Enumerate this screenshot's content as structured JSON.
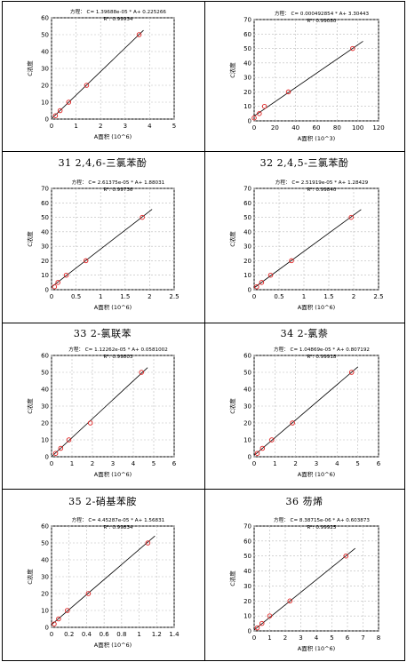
{
  "captions": [
    "",
    "",
    "31 2,4,6-三氯苯酚",
    "32 2,4,5-三氯苯酚",
    "33 2-氯联苯",
    "34 2-氯萘",
    "35 2-硝基苯胺",
    "36 芴烯"
  ],
  "chart_data": [
    {
      "type": "scatter",
      "title": "方程： C= 1.39688e-05 * A+ 0.225266",
      "subtitle": "R²: 0.99934",
      "xlabel": "A面积 (10^6)",
      "ylabel": "C浓度",
      "xlim": [
        0,
        5
      ],
      "ylim": [
        0,
        60
      ],
      "xticks": [
        0,
        1,
        2,
        3,
        4,
        5
      ],
      "yticks": [
        0,
        10,
        20,
        30,
        40,
        50,
        60
      ],
      "x": [
        0.16,
        0.35,
        0.7,
        1.43,
        3.57
      ],
      "y": [
        2,
        5,
        10,
        20,
        50
      ],
      "fit": {
        "x": [
          0,
          3.75
        ],
        "y": [
          0.2,
          52.6
        ]
      }
    },
    {
      "type": "scatter",
      "title": "方程： C= 0.000492854 * A+ 3.30443",
      "subtitle": "R²: 0.99080",
      "xlabel": "A面积 (10^3)",
      "ylabel": "C浓度",
      "xlim": [
        0,
        120
      ],
      "ylim": [
        0,
        70
      ],
      "xticks": [
        0,
        20,
        40,
        60,
        80,
        100,
        120
      ],
      "yticks": [
        0,
        10,
        20,
        30,
        40,
        50,
        60,
        70
      ],
      "x": [
        0,
        5,
        10,
        33,
        95
      ],
      "y": [
        2,
        5,
        10,
        20,
        50
      ],
      "fit": {
        "x": [
          0,
          105
        ],
        "y": [
          3.3,
          55.0
        ]
      }
    },
    {
      "type": "scatter",
      "title": "方程： C= 2.61375e-05 * A+ 1.88031",
      "subtitle": "R²: 0.99736",
      "xlabel": "A面积 (10^6)",
      "ylabel": "C浓度",
      "xlim": [
        0,
        2.5
      ],
      "ylim": [
        0,
        70
      ],
      "xticks": [
        0,
        0.5,
        1,
        1.5,
        2,
        2.5
      ],
      "yticks": [
        0,
        10,
        20,
        30,
        40,
        50,
        60,
        70
      ],
      "x": [
        0.06,
        0.13,
        0.3,
        0.7,
        1.85
      ],
      "y": [
        2,
        5,
        10,
        20,
        50
      ],
      "fit": {
        "x": [
          0,
          2.05
        ],
        "y": [
          1.9,
          55.5
        ]
      }
    },
    {
      "type": "scatter",
      "title": "方程： C= 2.51919e-05 * A+ 1.28429",
      "subtitle": "R²: 0.99840",
      "xlabel": "A面积 (10^6)",
      "ylabel": "C浓度",
      "xlim": [
        0,
        2.5
      ],
      "ylim": [
        0,
        70
      ],
      "xticks": [
        0,
        0.5,
        1,
        1.5,
        2,
        2.5
      ],
      "yticks": [
        0,
        10,
        20,
        30,
        40,
        50,
        60,
        70
      ],
      "x": [
        0.05,
        0.15,
        0.33,
        0.75,
        1.95
      ],
      "y": [
        2,
        5,
        10,
        20,
        50
      ],
      "fit": {
        "x": [
          0,
          2.15
        ],
        "y": [
          1.3,
          55.4
        ]
      }
    },
    {
      "type": "scatter",
      "title": "方程： C= 1.12262e-05 * A+ 0.0581002",
      "subtitle": "R²: 0.99803",
      "xlabel": "A面积 (10^6)",
      "ylabel": "C浓度",
      "xlim": [
        0,
        6
      ],
      "ylim": [
        0,
        60
      ],
      "xticks": [
        0,
        1,
        2,
        3,
        4,
        5,
        6
      ],
      "yticks": [
        0,
        10,
        20,
        30,
        40,
        50,
        60
      ],
      "x": [
        0.2,
        0.45,
        0.85,
        1.9,
        4.4
      ],
      "y": [
        2,
        5,
        10,
        20,
        50
      ],
      "fit": {
        "x": [
          0,
          4.7
        ],
        "y": [
          0.06,
          52.8
        ]
      }
    },
    {
      "type": "scatter",
      "title": "方程： C= 1.04869e-05 * A+ 0.807192",
      "subtitle": "R²: 0.99918",
      "xlabel": "A面积 (10^6)",
      "ylabel": "C浓度",
      "xlim": [
        0,
        6
      ],
      "ylim": [
        0,
        60
      ],
      "xticks": [
        0,
        1,
        2,
        3,
        4,
        5,
        6
      ],
      "yticks": [
        0,
        10,
        20,
        30,
        40,
        50,
        60
      ],
      "x": [
        0.15,
        0.4,
        0.85,
        1.85,
        4.7
      ],
      "y": [
        2,
        5,
        10,
        20,
        50
      ],
      "fit": {
        "x": [
          0,
          5.0
        ],
        "y": [
          0.8,
          53.2
        ]
      }
    },
    {
      "type": "scatter",
      "title": "方程： C= 4.45287e-05 * A+ 1.56831",
      "subtitle": "R²: 0.99834",
      "xlabel": "A面积 (10^6)",
      "ylabel": "C浓度",
      "xlim": [
        0,
        1.4
      ],
      "ylim": [
        0,
        60
      ],
      "xticks": [
        0,
        0.2,
        0.4,
        0.6,
        0.8,
        1,
        1.2,
        1.4
      ],
      "yticks": [
        0,
        10,
        20,
        30,
        40,
        50,
        60
      ],
      "x": [
        0.03,
        0.08,
        0.18,
        0.42,
        1.1
      ],
      "y": [
        2,
        5,
        10,
        20,
        50
      ],
      "fit": {
        "x": [
          0,
          1.18
        ],
        "y": [
          1.6,
          54.1
        ]
      }
    },
    {
      "type": "scatter",
      "title": "方程： C= 8.38715e-06 * A+ 0.603873",
      "subtitle": "R²: 0.99925",
      "xlabel": "A面积 (10^6)",
      "ylabel": "C浓度",
      "xlim": [
        0,
        8
      ],
      "ylim": [
        0,
        70
      ],
      "xticks": [
        0,
        1,
        2,
        3,
        4,
        5,
        6,
        7,
        8
      ],
      "yticks": [
        0,
        10,
        20,
        30,
        40,
        50,
        60,
        70
      ],
      "x": [
        0.2,
        0.5,
        1.0,
        2.3,
        5.9
      ],
      "y": [
        2,
        5,
        10,
        20,
        50
      ],
      "fit": {
        "x": [
          0,
          6.5
        ],
        "y": [
          0.6,
          55.1
        ]
      }
    }
  ]
}
